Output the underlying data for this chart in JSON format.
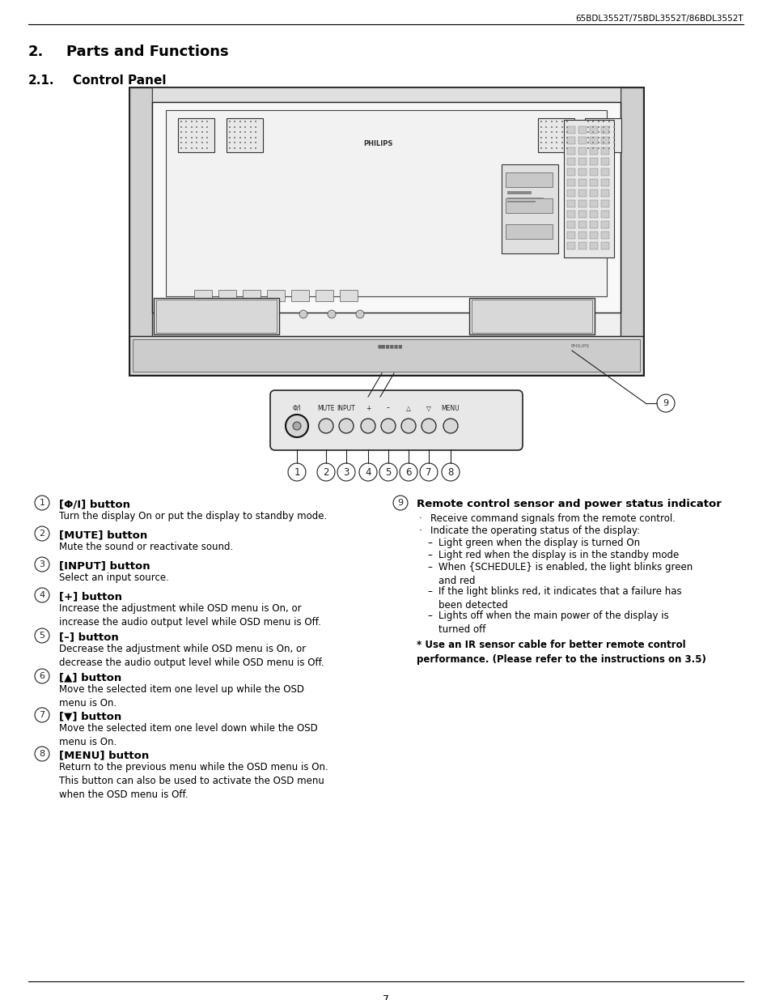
{
  "header_model": "65BDL3552T/75BDL3552T/86BDL3552T",
  "section_number": "2.",
  "section_title": "Parts and Functions",
  "subsection_number": "2.1.",
  "subsection_title": "Control Panel",
  "footer_page": "7",
  "left_items": [
    {
      "num": "1",
      "title_parts": [
        [
          "[Φ/I] button",
          "bold"
        ]
      ],
      "desc": "Turn the display On or put the display to standby mode."
    },
    {
      "num": "2",
      "title_parts": [
        [
          "[MUTE] button",
          "bold"
        ]
      ],
      "desc": "Mute the sound or reactivate sound."
    },
    {
      "num": "3",
      "title_parts": [
        [
          "[INPUT] button",
          "bold"
        ]
      ],
      "desc": "Select an input source."
    },
    {
      "num": "4",
      "title_parts": [
        [
          "[+] button",
          "bold"
        ]
      ],
      "desc": "Increase the adjustment while OSD menu is On, or\nincrease the audio output level while OSD menu is Off."
    },
    {
      "num": "5",
      "title_parts": [
        [
          "[–] button",
          "bold"
        ]
      ],
      "desc": "Decrease the adjustment while OSD menu is On, or\ndecrease the audio output level while OSD menu is Off."
    },
    {
      "num": "6",
      "title_parts": [
        [
          "[▲] button",
          "bold"
        ]
      ],
      "desc": "Move the selected item one level up while the OSD\nmenu is On."
    },
    {
      "num": "7",
      "title_parts": [
        [
          "[▼] button",
          "bold"
        ]
      ],
      "desc": "Move the selected item one level down while the OSD\nmenu is On."
    },
    {
      "num": "8",
      "title_parts": [
        [
          "[MENU] button",
          "bold"
        ]
      ],
      "desc": "Return to the previous menu while the OSD menu is On.\nThis button can also be used to activate the OSD menu\nwhen the OSD menu is Off."
    }
  ],
  "right_item": {
    "num": "9",
    "title": "Remote control sensor and power status indicator",
    "bullets": [
      [
        "·",
        "Receive command signals from the remote control."
      ],
      [
        "·",
        "Indicate the operating status of the display:"
      ],
      [
        "–",
        "Light green when the display is turned On"
      ],
      [
        "–",
        "Light red when the display is in the standby mode"
      ],
      [
        "–",
        "When {SCHEDULE} is enabled, the light blinks green\nand red"
      ],
      [
        "–",
        "If the light blinks red, it indicates that a failure has\nbeen detected"
      ],
      [
        "–",
        "Lights off when the main power of the display is\nturned off"
      ]
    ],
    "note_plain": "* ",
    "note_bold": "Use an IR sensor cable for better remote control\nperformance. (Please refer to the instructions on 3.5)"
  },
  "bg_color": "#ffffff",
  "text_color": "#000000"
}
